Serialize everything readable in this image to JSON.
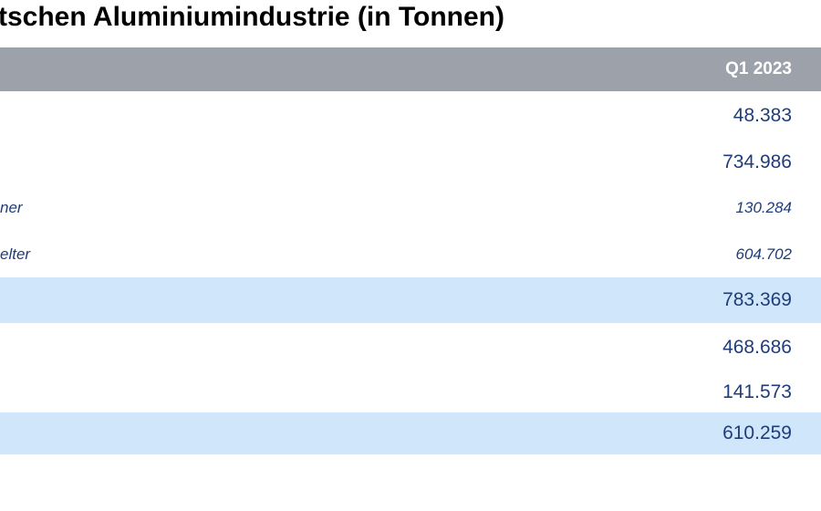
{
  "header": {
    "title": "tschen Aluminiumindustrie (in Tonnen)"
  },
  "table": {
    "columns": [
      "Q1 2023"
    ],
    "rows": [
      {
        "value": "48.383"
      },
      {
        "value": "734.986"
      },
      {
        "label": "ner",
        "value": "130.284",
        "italic": true
      },
      {
        "label": "elter",
        "value": "604.702",
        "italic": true
      },
      {
        "value": "783.369",
        "highlight": true
      },
      {
        "value": "468.686"
      },
      {
        "value": "141.573"
      },
      {
        "value": "610.259",
        "highlight": true
      }
    ]
  }
}
